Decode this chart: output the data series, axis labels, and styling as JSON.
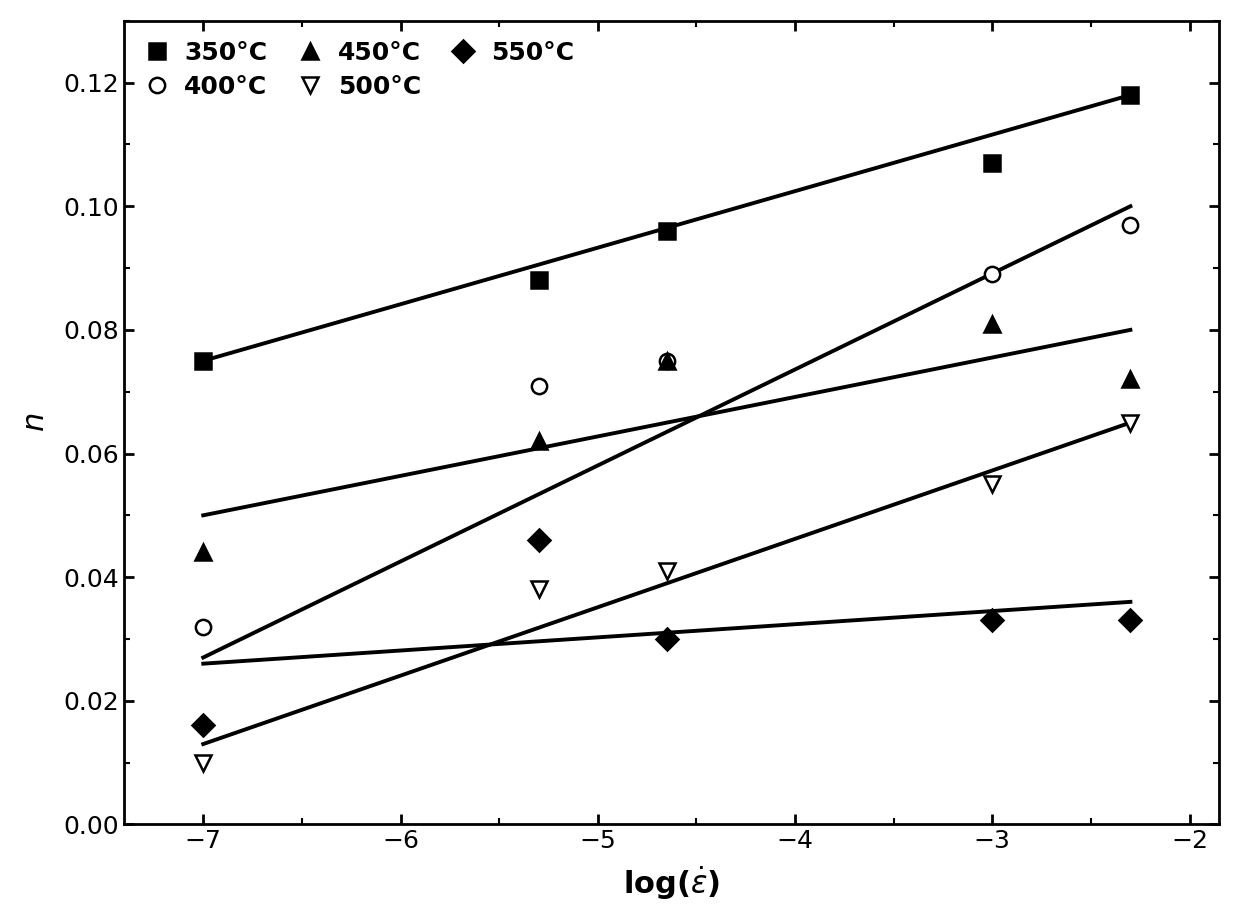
{
  "series": [
    {
      "label": "350°C",
      "marker": "s",
      "filled": true,
      "points_x": [
        -7,
        -5.3,
        -4.65,
        -3,
        -2.3
      ],
      "points_y": [
        0.075,
        0.088,
        0.096,
        0.107,
        0.118
      ],
      "line_x": [
        -7.0,
        -2.3
      ],
      "line_y": [
        0.075,
        0.118
      ]
    },
    {
      "label": "400°C",
      "marker": "o",
      "filled": false,
      "points_x": [
        -7,
        -5.3,
        -4.65,
        -3,
        -2.3
      ],
      "points_y": [
        0.032,
        0.071,
        0.075,
        0.089,
        0.097
      ],
      "line_x": [
        -7.0,
        -2.3
      ],
      "line_y": [
        0.027,
        0.1
      ]
    },
    {
      "label": "450°C",
      "marker": "^",
      "filled": true,
      "points_x": [
        -7,
        -5.3,
        -4.65,
        -3,
        -2.3
      ],
      "points_y": [
        0.044,
        0.062,
        0.075,
        0.081,
        0.072
      ],
      "line_x": [
        -7.0,
        -2.3
      ],
      "line_y": [
        0.05,
        0.08
      ]
    },
    {
      "label": "500°C",
      "marker": "v",
      "filled": false,
      "points_x": [
        -7,
        -5.3,
        -4.65,
        -3,
        -2.3
      ],
      "points_y": [
        0.01,
        0.038,
        0.041,
        0.055,
        0.065
      ],
      "line_x": [
        -7.0,
        -2.3
      ],
      "line_y": [
        0.013,
        0.065
      ]
    },
    {
      "label": "550°C",
      "marker": "D",
      "filled": true,
      "points_x": [
        -7,
        -5.3,
        -4.65,
        -3,
        -2.3
      ],
      "points_y": [
        0.016,
        0.046,
        0.03,
        0.033,
        0.033
      ],
      "line_x": [
        -7.0,
        -2.3
      ],
      "line_y": [
        0.026,
        0.036
      ]
    }
  ],
  "xlim": [
    -7.4,
    -1.85
  ],
  "ylim": [
    0.0,
    0.13
  ],
  "xticks": [
    -7,
    -6,
    -5,
    -4,
    -3,
    -2
  ],
  "yticks": [
    0.0,
    0.02,
    0.04,
    0.06,
    0.08,
    0.1,
    0.12
  ],
  "xlabel": "log($\\dot{\\varepsilon}$)",
  "ylabel": "$n$",
  "linewidth": 2.8,
  "markersize": 11,
  "tick_labelsize": 18,
  "label_fontsize": 22,
  "legend_fontsize": 18
}
